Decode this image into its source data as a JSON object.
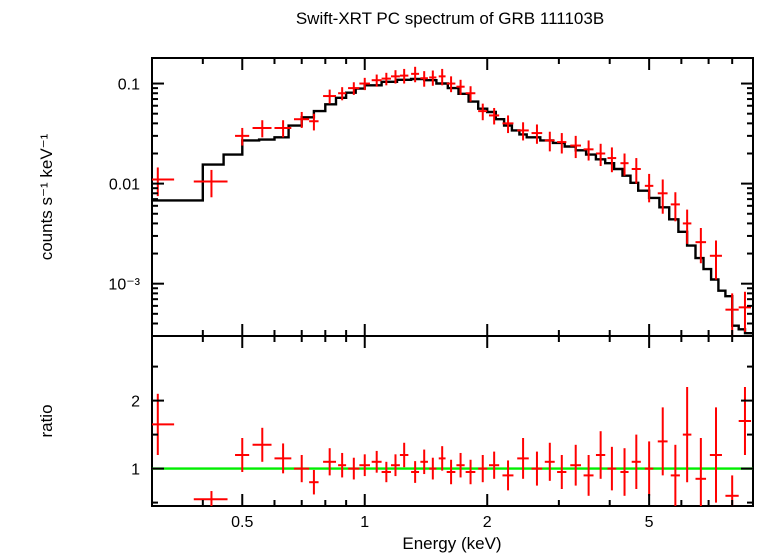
{
  "chart_data": [
    {
      "type": "scatter",
      "panel": "spectrum",
      "title": "Swift-XRT PC spectrum of GRB 111103B",
      "xlabel": "",
      "ylabel": "counts s⁻¹ keV⁻¹",
      "xscale": "log",
      "yscale": "log",
      "xlim": [
        0.3,
        9.0
      ],
      "ylim": [
        0.0003,
        0.18
      ],
      "x_ticks": [],
      "y_ticks": [
        {
          "value": 0.1,
          "label": "0.1"
        },
        {
          "value": 0.01,
          "label": "0.01"
        },
        {
          "value": 0.001,
          "label": "10⁻³"
        }
      ],
      "colors": {
        "data": "#ff0000",
        "model": "#000000"
      },
      "series": [
        {
          "kind": "data",
          "x": [
            0.31,
            0.42,
            0.5,
            0.56,
            0.63,
            0.7,
            0.75,
            0.82,
            0.88,
            0.94,
            1.0,
            1.07,
            1.13,
            1.19,
            1.25,
            1.33,
            1.4,
            1.47,
            1.55,
            1.63,
            1.72,
            1.82,
            1.95,
            2.08,
            2.25,
            2.45,
            2.65,
            2.85,
            3.05,
            3.3,
            3.55,
            3.8,
            4.05,
            4.35,
            4.65,
            5.0,
            5.4,
            5.8,
            6.2,
            6.7,
            7.3,
            8.0,
            8.6
          ],
          "y": [
            0.011,
            0.0105,
            0.03,
            0.036,
            0.036,
            0.044,
            0.042,
            0.075,
            0.08,
            0.09,
            0.1,
            0.108,
            0.112,
            0.118,
            0.12,
            0.125,
            0.113,
            0.115,
            0.118,
            0.1,
            0.093,
            0.08,
            0.053,
            0.048,
            0.04,
            0.034,
            0.032,
            0.027,
            0.026,
            0.024,
            0.022,
            0.02,
            0.018,
            0.016,
            0.014,
            0.0095,
            0.008,
            0.0062,
            0.004,
            0.0026,
            0.0019,
            0.00055,
            0.00058
          ],
          "xerr": [
            0.03,
            0.04,
            0.02,
            0.03,
            0.03,
            0.03,
            0.02,
            0.03,
            0.02,
            0.03,
            0.03,
            0.03,
            0.03,
            0.03,
            0.03,
            0.03,
            0.03,
            0.03,
            0.03,
            0.04,
            0.04,
            0.05,
            0.05,
            0.06,
            0.07,
            0.08,
            0.08,
            0.08,
            0.08,
            0.1,
            0.1,
            0.1,
            0.1,
            0.1,
            0.12,
            0.12,
            0.15,
            0.15,
            0.15,
            0.2,
            0.25,
            0.3,
            0.3
          ],
          "yerr": [
            0.0035,
            0.0032,
            0.006,
            0.007,
            0.007,
            0.008,
            0.008,
            0.012,
            0.012,
            0.013,
            0.014,
            0.015,
            0.016,
            0.018,
            0.02,
            0.022,
            0.02,
            0.02,
            0.022,
            0.018,
            0.016,
            0.014,
            0.01,
            0.009,
            0.008,
            0.007,
            0.007,
            0.006,
            0.006,
            0.006,
            0.005,
            0.005,
            0.005,
            0.004,
            0.004,
            0.003,
            0.003,
            0.002,
            0.0015,
            0.001,
            0.0008,
            0.00025,
            0.00025
          ]
        },
        {
          "kind": "model-step",
          "x": [
            0.3,
            0.35,
            0.4,
            0.45,
            0.5,
            0.55,
            0.6,
            0.65,
            0.7,
            0.75,
            0.8,
            0.85,
            0.9,
            0.95,
            1.0,
            1.1,
            1.2,
            1.3,
            1.4,
            1.5,
            1.6,
            1.7,
            1.8,
            1.9,
            2.0,
            2.1,
            2.2,
            2.3,
            2.4,
            2.5,
            2.7,
            2.9,
            3.1,
            3.3,
            3.5,
            3.7,
            3.9,
            4.1,
            4.3,
            4.5,
            4.7,
            5.0,
            5.3,
            5.6,
            5.9,
            6.2,
            6.5,
            6.8,
            7.1,
            7.4,
            7.7,
            8.0,
            8.3,
            8.6,
            9.0
          ],
          "y": [
            0.0068,
            0.0068,
            0.0155,
            0.0195,
            0.027,
            0.0275,
            0.029,
            0.038,
            0.046,
            0.053,
            0.062,
            0.072,
            0.081,
            0.089,
            0.096,
            0.104,
            0.109,
            0.111,
            0.108,
            0.1,
            0.09,
            0.079,
            0.066,
            0.056,
            0.052,
            0.044,
            0.038,
            0.034,
            0.031,
            0.029,
            0.027,
            0.0255,
            0.0235,
            0.0215,
            0.0195,
            0.0175,
            0.016,
            0.014,
            0.012,
            0.0102,
            0.0085,
            0.0072,
            0.0058,
            0.0044,
            0.0033,
            0.0024,
            0.0018,
            0.0014,
            0.0011,
            0.00085,
            0.00075,
            0.00038,
            0.00035,
            0.00032,
            0.0003
          ]
        }
      ]
    },
    {
      "type": "scatter",
      "panel": "ratio",
      "title": "",
      "xlabel": "Energy (keV)",
      "ylabel": "ratio",
      "xscale": "log",
      "yscale": "linear",
      "xlim": [
        0.3,
        9.0
      ],
      "ylim": [
        0.45,
        2.95
      ],
      "x_ticks": [
        {
          "value": 0.5,
          "label": "0.5"
        },
        {
          "value": 1,
          "label": "1"
        },
        {
          "value": 2,
          "label": "2"
        },
        {
          "value": 5,
          "label": "5"
        }
      ],
      "y_ticks": [
        {
          "value": 1,
          "label": "1"
        },
        {
          "value": 2,
          "label": "2"
        }
      ],
      "reference_line": 1,
      "colors": {
        "data": "#ff0000",
        "reference": "#00ee00"
      },
      "series": [
        {
          "kind": "data",
          "x": [
            0.31,
            0.42,
            0.5,
            0.56,
            0.63,
            0.7,
            0.75,
            0.82,
            0.88,
            0.94,
            1.0,
            1.07,
            1.13,
            1.19,
            1.25,
            1.33,
            1.4,
            1.47,
            1.55,
            1.63,
            1.72,
            1.82,
            1.95,
            2.08,
            2.25,
            2.45,
            2.65,
            2.85,
            3.05,
            3.3,
            3.55,
            3.8,
            4.05,
            4.35,
            4.65,
            5.0,
            5.4,
            5.8,
            6.2,
            6.7,
            7.3,
            8.0,
            8.6
          ],
          "y": [
            1.65,
            0.55,
            1.2,
            1.35,
            1.15,
            1.0,
            0.8,
            1.1,
            1.05,
            1.0,
            1.05,
            1.1,
            0.95,
            1.05,
            1.2,
            0.95,
            1.1,
            1.0,
            1.15,
            0.95,
            1.05,
            0.95,
            1.0,
            1.05,
            0.9,
            1.15,
            1.0,
            1.1,
            0.95,
            1.05,
            0.9,
            1.2,
            1.0,
            0.95,
            1.1,
            1.0,
            1.4,
            0.9,
            1.5,
            0.85,
            1.2,
            0.6,
            1.7
          ],
          "xerr": [
            0.03,
            0.04,
            0.02,
            0.03,
            0.03,
            0.03,
            0.02,
            0.03,
            0.02,
            0.03,
            0.03,
            0.03,
            0.03,
            0.03,
            0.03,
            0.03,
            0.03,
            0.03,
            0.03,
            0.04,
            0.04,
            0.05,
            0.05,
            0.06,
            0.07,
            0.08,
            0.08,
            0.08,
            0.08,
            0.1,
            0.1,
            0.1,
            0.1,
            0.1,
            0.12,
            0.12,
            0.15,
            0.15,
            0.15,
            0.2,
            0.25,
            0.3,
            0.3
          ],
          "yerr": [
            0.45,
            0.12,
            0.25,
            0.25,
            0.22,
            0.2,
            0.18,
            0.2,
            0.18,
            0.16,
            0.16,
            0.16,
            0.15,
            0.16,
            0.18,
            0.16,
            0.18,
            0.16,
            0.18,
            0.18,
            0.18,
            0.18,
            0.2,
            0.2,
            0.22,
            0.3,
            0.25,
            0.28,
            0.25,
            0.3,
            0.3,
            0.35,
            0.32,
            0.35,
            0.4,
            0.4,
            0.5,
            0.45,
            0.7,
            0.6,
            0.7,
            0.3,
            0.5
          ]
        }
      ]
    }
  ]
}
